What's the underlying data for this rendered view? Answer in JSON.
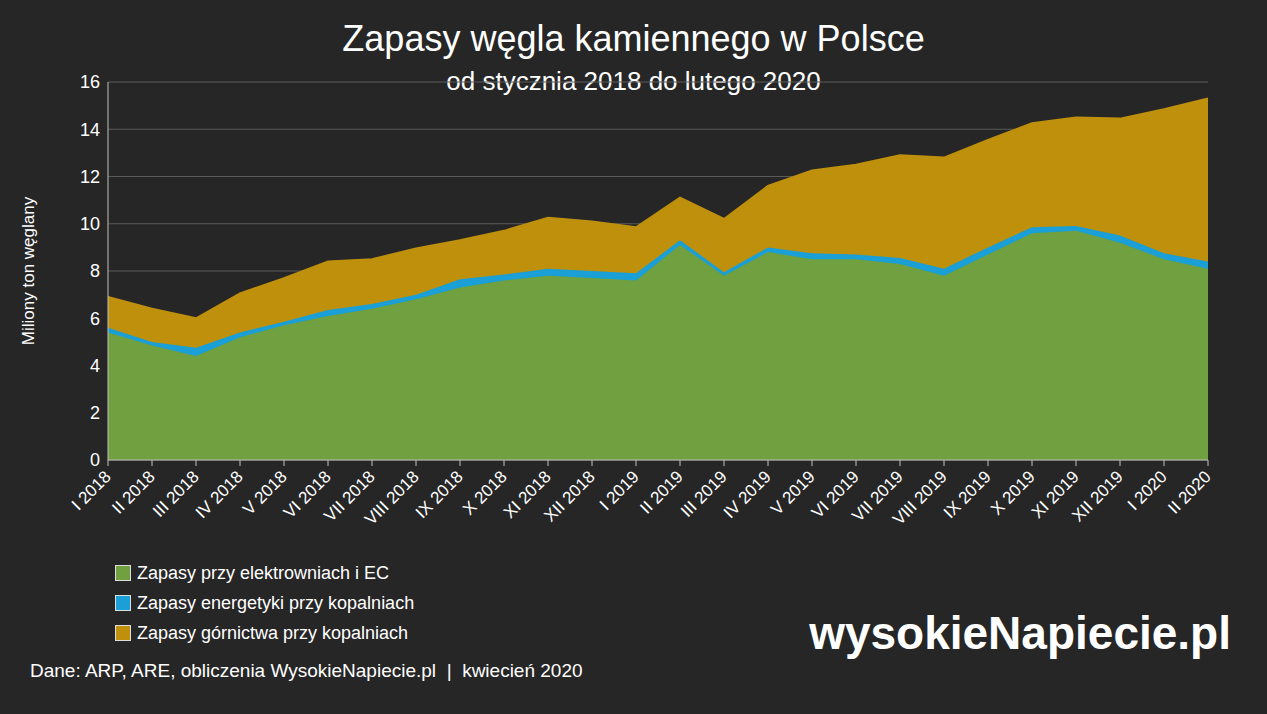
{
  "chart_data": {
    "type": "area",
    "title": "Zapasy węgla kamiennego w Polsce",
    "subtitle": "od stycznia 2018 do lutego 2020",
    "y_label": "Miliony ton węglany",
    "source": "Dane: ARP, ARE, obliczenia WysokieNapiecie.pl  |  kwiecień 2020",
    "logo": "wysokieNapiecie.pl",
    "stacked": true,
    "grid": true,
    "legend": "lower left",
    "categories": [
      "I 2018",
      "II 2018",
      "III 2018",
      "IV 2018",
      "V 2018",
      "VI 2018",
      "VII 2018",
      "VIII 2018",
      "IX 2018",
      "X 2018",
      "XI 2018",
      "XII 2018",
      "I 2019",
      "II 2019",
      "III 2019",
      "IV 2019",
      "V 2019",
      "VI 2019",
      "VII 2019",
      "VIII 2019",
      "IX 2019",
      "X 2019",
      "XI 2019",
      "XII 2019",
      "I 2020",
      "II 2020"
    ],
    "series": [
      {
        "name": "Zapasy przy elektrowniach i EC",
        "color": "#70a03f",
        "values": [
          5.4,
          4.85,
          4.4,
          5.2,
          5.7,
          6.1,
          6.4,
          6.8,
          7.3,
          7.6,
          7.8,
          7.7,
          7.6,
          9.1,
          7.8,
          8.8,
          8.5,
          8.5,
          8.3,
          7.8,
          8.7,
          9.6,
          9.7,
          9.2,
          8.5,
          8.1
        ]
      },
      {
        "name": "Zapasy energetyki przy kopalniach",
        "color": "#1a9fd6",
        "values": [
          0.2,
          0.15,
          0.35,
          0.2,
          0.15,
          0.25,
          0.2,
          0.2,
          0.35,
          0.25,
          0.3,
          0.3,
          0.3,
          0.2,
          0.15,
          0.2,
          0.25,
          0.2,
          0.25,
          0.3,
          0.3,
          0.25,
          0.2,
          0.3,
          0.25,
          0.3
        ]
      },
      {
        "name": "Zapasy górnictwa przy kopalniach",
        "color": "#bf900c",
        "values": [
          1.3,
          1.4,
          1.25,
          1.65,
          1.85,
          2.05,
          1.9,
          1.95,
          1.65,
          1.85,
          2.15,
          2.1,
          1.95,
          1.8,
          2.25,
          2.6,
          3.5,
          3.8,
          4.35,
          4.7,
          4.55,
          4.4,
          4.6,
          4.95,
          6.1,
          6.9
        ]
      }
    ],
    "ylim": [
      0,
      16
    ],
    "yticks": [
      0,
      2,
      4,
      6,
      8,
      10,
      12,
      14,
      16
    ]
  }
}
